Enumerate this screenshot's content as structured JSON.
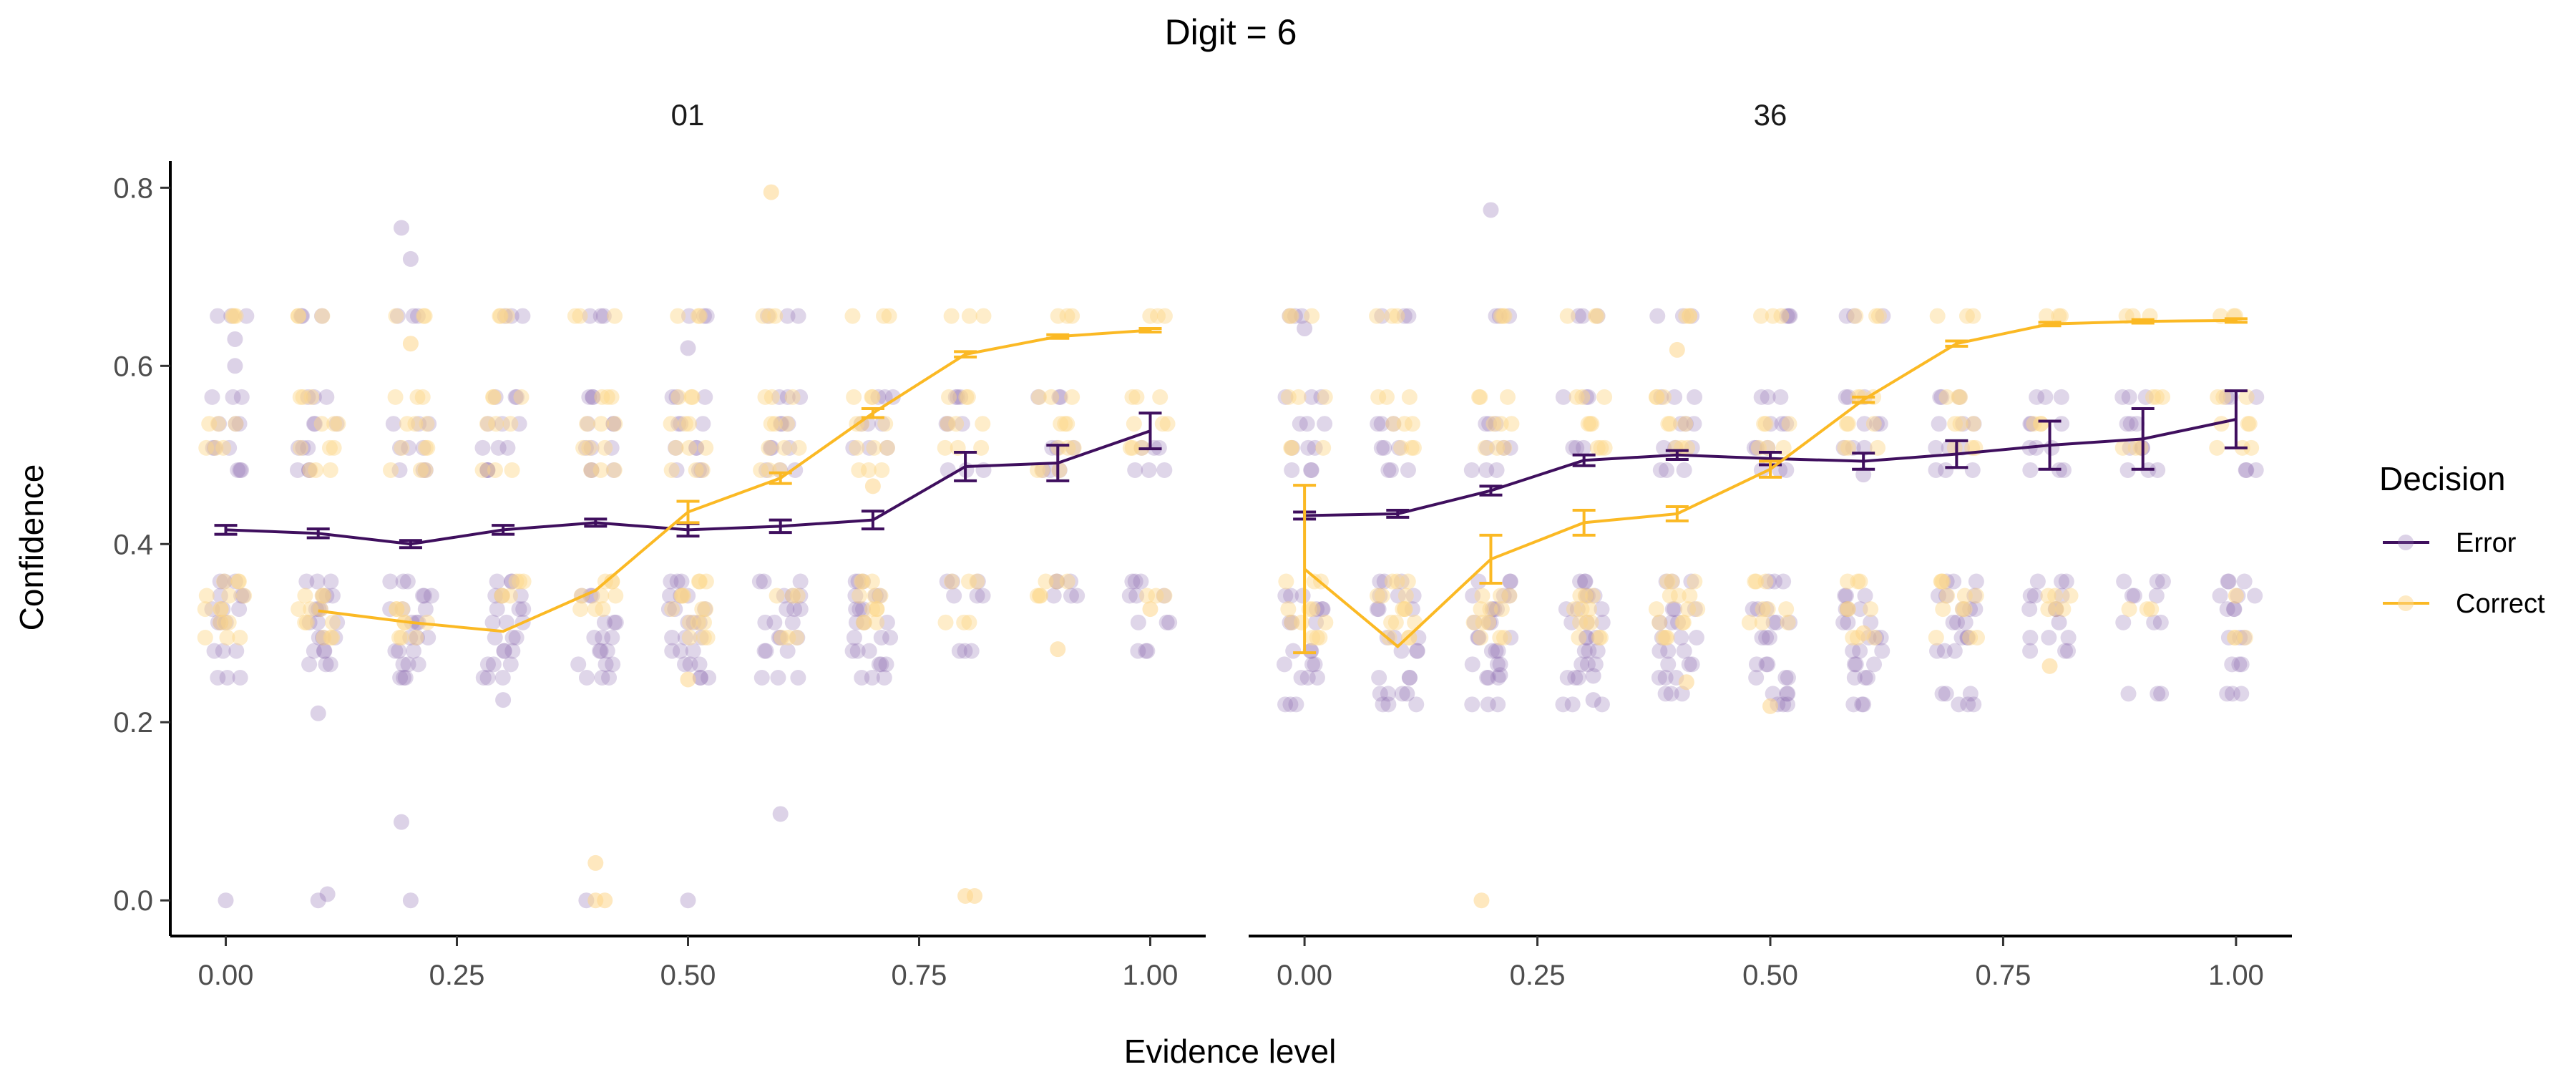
{
  "figure": {
    "title": "Digit = 6",
    "xlabel": "Evidence level",
    "ylabel": "Confidence"
  },
  "legend": {
    "title": "Decision",
    "items": [
      "Error",
      "Correct"
    ]
  },
  "colors": {
    "error": "#3f0f5e",
    "correct": "#fbb924",
    "error_points": "#8c6bb1",
    "correct_points": "#fdd68a"
  },
  "chart_data": [
    {
      "type": "line",
      "panel": "01",
      "x_ticks": [
        "0.00",
        "0.25",
        "0.50",
        "0.75",
        "1.00"
      ],
      "y_ticks": [
        "0.0",
        "0.2",
        "0.4",
        "0.6",
        "0.8"
      ],
      "xlim": [
        -0.06,
        1.06
      ],
      "ylim": [
        -0.04,
        0.83
      ],
      "series": [
        {
          "name": "Error",
          "x": [
            0.0,
            0.1,
            0.2,
            0.3,
            0.4,
            0.5,
            0.6,
            0.7,
            0.8,
            0.9,
            1.0
          ],
          "y": [
            0.416,
            0.412,
            0.4,
            0.416,
            0.424,
            0.416,
            0.42,
            0.427,
            0.487,
            0.491,
            0.527
          ],
          "err": [
            0.005,
            0.005,
            0.004,
            0.005,
            0.004,
            0.007,
            0.007,
            0.01,
            0.016,
            0.02,
            0.02
          ]
        },
        {
          "name": "Correct",
          "x": [
            0.1,
            0.2,
            0.3,
            0.4,
            0.5,
            0.6,
            0.7,
            0.8,
            0.9,
            1.0
          ],
          "y": [
            0.325,
            0.312,
            0.302,
            0.348,
            0.436,
            0.474,
            0.547,
            0.613,
            0.633,
            0.64
          ],
          "err": [
            0.0,
            0.0,
            0.0,
            0.0,
            0.012,
            0.006,
            0.005,
            0.003,
            0.002,
            0.002
          ]
        }
      ],
      "scatter": {
        "error_levels": [
          0.656,
          0.565,
          0.535,
          0.508,
          0.483,
          0.358,
          0.342,
          0.327,
          0.312,
          0.295,
          0.28,
          0.265,
          0.25
        ],
        "correct_levels": [
          0.656,
          0.565,
          0.535,
          0.508,
          0.483,
          0.358,
          0.342,
          0.327,
          0.312,
          0.295
        ],
        "error_extra": [
          [
            0.0,
            0.0
          ],
          [
            0.1,
            0.0
          ],
          [
            0.11,
            0.007
          ],
          [
            0.2,
            0.0
          ],
          [
            0.39,
            0.0
          ],
          [
            0.5,
            0.0
          ],
          [
            0.19,
            0.088
          ],
          [
            0.1,
            0.21
          ],
          [
            0.19,
            0.755
          ],
          [
            0.2,
            0.72
          ],
          [
            0.6,
            0.097
          ],
          [
            0.01,
            0.6
          ],
          [
            0.3,
            0.225
          ],
          [
            0.5,
            0.62
          ],
          [
            0.01,
            0.63
          ]
        ],
        "correct_extra": [
          [
            0.4,
            0.042
          ],
          [
            0.41,
            0.0
          ],
          [
            0.8,
            0.005
          ],
          [
            0.81,
            0.005
          ],
          [
            0.59,
            0.795
          ],
          [
            0.4,
            0.0
          ],
          [
            1.0,
            0.327
          ],
          [
            0.2,
            0.625
          ],
          [
            0.7,
            0.465
          ],
          [
            0.9,
            0.282
          ],
          [
            0.5,
            0.248
          ]
        ]
      }
    },
    {
      "type": "line",
      "panel": "36",
      "x_ticks": [
        "0.00",
        "0.25",
        "0.50",
        "0.75",
        "1.00"
      ],
      "y_ticks": [
        "0.0",
        "0.2",
        "0.4",
        "0.6",
        "0.8"
      ],
      "xlim": [
        -0.06,
        1.06
      ],
      "ylim": [
        -0.04,
        0.83
      ],
      "series": [
        {
          "name": "Error",
          "x": [
            0.0,
            0.1,
            0.2,
            0.3,
            0.4,
            0.5,
            0.6,
            0.7,
            0.8,
            0.9,
            1.0
          ],
          "y": [
            0.432,
            0.434,
            0.46,
            0.494,
            0.5,
            0.496,
            0.493,
            0.501,
            0.511,
            0.518,
            0.54
          ],
          "err": [
            0.004,
            0.004,
            0.005,
            0.006,
            0.005,
            0.007,
            0.009,
            0.015,
            0.027,
            0.034,
            0.032
          ]
        },
        {
          "name": "Correct",
          "x": [
            0.0,
            0.1,
            0.2,
            0.3,
            0.4,
            0.5,
            0.6,
            0.7,
            0.8,
            0.9,
            1.0
          ],
          "y": [
            0.372,
            0.285,
            0.383,
            0.424,
            0.434,
            0.484,
            0.562,
            0.625,
            0.647,
            0.65,
            0.651
          ],
          "err": [
            0.094,
            0.0,
            0.027,
            0.014,
            0.008,
            0.009,
            0.003,
            0.003,
            0.002,
            0.002,
            0.002
          ]
        }
      ],
      "scatter": {
        "error_levels": [
          0.656,
          0.565,
          0.535,
          0.508,
          0.483,
          0.358,
          0.342,
          0.327,
          0.312,
          0.295,
          0.28,
          0.265,
          0.25,
          0.232,
          0.22
        ],
        "correct_levels": [
          0.656,
          0.565,
          0.535,
          0.508,
          0.358,
          0.342,
          0.327,
          0.312,
          0.295
        ],
        "error_extra": [
          [
            0.2,
            0.775
          ],
          [
            0.0,
            0.642
          ],
          [
            0.11,
            0.232
          ],
          [
            0.31,
            0.225
          ],
          [
            0.21,
            0.253
          ],
          [
            0.81,
            0.312
          ],
          [
            0.6,
            0.478
          ],
          [
            0.31,
            0.252
          ]
        ],
        "correct_extra": [
          [
            0.19,
            0.0
          ],
          [
            0.4,
            0.618
          ],
          [
            0.5,
            0.218
          ],
          [
            0.8,
            0.263
          ],
          [
            0.6,
            0.3
          ],
          [
            0.41,
            0.245
          ],
          [
            1.0,
            0.342
          ]
        ]
      }
    }
  ]
}
